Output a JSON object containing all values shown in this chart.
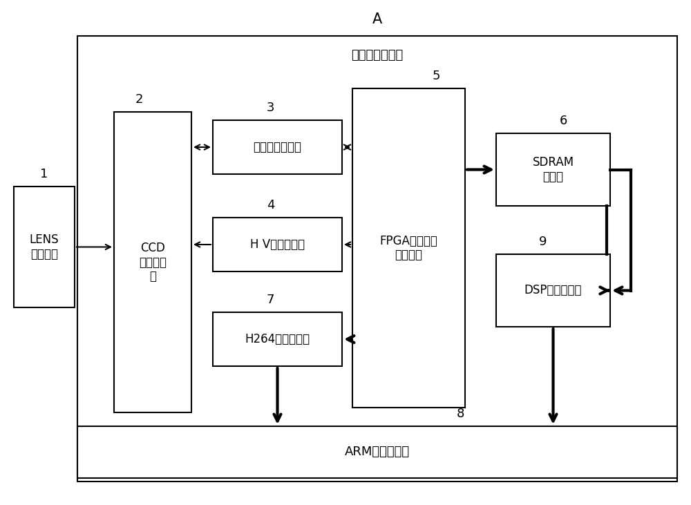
{
  "title_A": "A",
  "title_camera": "智能网络摄像机",
  "label_1": "1",
  "label_2": "2",
  "label_3": "3",
  "label_4": "4",
  "label_5": "5",
  "label_6": "6",
  "label_7": "7",
  "label_8": "8",
  "label_9": "9",
  "box_LENS": "LENS\n光学镜头",
  "box_CCD": "CCD\n图像传感\n器",
  "box_signal": "信号采集转换器",
  "box_HV": "H V信号驱动器",
  "box_FPGA": "FPGA可编程逻\n辑处理器",
  "box_SDRAM": "SDRAM\n存储器",
  "box_H264": "H264录像编码器",
  "box_ARM": "ARM中心处理器",
  "box_DSP": "DSP图像处理器",
  "bg_color": "#ffffff",
  "box_color": "#ffffff",
  "box_edge": "#000000",
  "text_color": "#000000"
}
